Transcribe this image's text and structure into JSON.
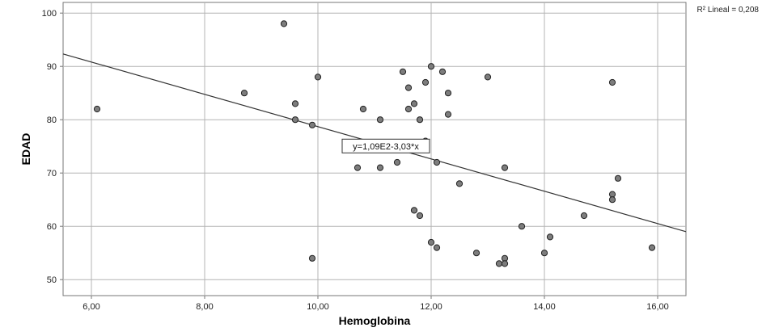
{
  "chart_data": {
    "type": "scatter",
    "title": "",
    "xlabel": "Hemoglobina",
    "ylabel": "EDAD",
    "xlim": [
      5.5,
      16.5
    ],
    "ylim": [
      47,
      102
    ],
    "x_ticks": [
      {
        "value": 6,
        "label": "6,00"
      },
      {
        "value": 8,
        "label": "8,00"
      },
      {
        "value": 10,
        "label": "10,00"
      },
      {
        "value": 12,
        "label": "12,00"
      },
      {
        "value": 14,
        "label": "14,00"
      },
      {
        "value": 16,
        "label": "16,00"
      }
    ],
    "y_ticks": [
      {
        "value": 50,
        "label": "50"
      },
      {
        "value": 60,
        "label": "60"
      },
      {
        "value": 70,
        "label": "70"
      },
      {
        "value": 80,
        "label": "80"
      },
      {
        "value": 90,
        "label": "90"
      },
      {
        "value": 100,
        "label": "100"
      }
    ],
    "grid": true,
    "points": [
      {
        "x": 6.1,
        "y": 82
      },
      {
        "x": 8.7,
        "y": 85
      },
      {
        "x": 9.4,
        "y": 98
      },
      {
        "x": 9.6,
        "y": 83
      },
      {
        "x": 9.6,
        "y": 80
      },
      {
        "x": 9.9,
        "y": 79
      },
      {
        "x": 9.9,
        "y": 54
      },
      {
        "x": 10.0,
        "y": 88
      },
      {
        "x": 10.7,
        "y": 71
      },
      {
        "x": 10.8,
        "y": 82
      },
      {
        "x": 11.1,
        "y": 80
      },
      {
        "x": 11.1,
        "y": 71
      },
      {
        "x": 11.4,
        "y": 72
      },
      {
        "x": 11.5,
        "y": 89
      },
      {
        "x": 11.6,
        "y": 86
      },
      {
        "x": 11.6,
        "y": 82
      },
      {
        "x": 11.7,
        "y": 83
      },
      {
        "x": 11.7,
        "y": 63
      },
      {
        "x": 11.8,
        "y": 80
      },
      {
        "x": 11.8,
        "y": 62
      },
      {
        "x": 11.9,
        "y": 87
      },
      {
        "x": 11.9,
        "y": 76
      },
      {
        "x": 12.0,
        "y": 90
      },
      {
        "x": 12.0,
        "y": 57
      },
      {
        "x": 12.1,
        "y": 72
      },
      {
        "x": 12.1,
        "y": 56
      },
      {
        "x": 12.2,
        "y": 89
      },
      {
        "x": 12.3,
        "y": 85
      },
      {
        "x": 12.3,
        "y": 81
      },
      {
        "x": 12.5,
        "y": 68
      },
      {
        "x": 12.8,
        "y": 55
      },
      {
        "x": 13.0,
        "y": 88
      },
      {
        "x": 13.2,
        "y": 53
      },
      {
        "x": 13.3,
        "y": 71
      },
      {
        "x": 13.3,
        "y": 54
      },
      {
        "x": 13.3,
        "y": 53
      },
      {
        "x": 13.6,
        "y": 60
      },
      {
        "x": 14.0,
        "y": 55
      },
      {
        "x": 14.1,
        "y": 58
      },
      {
        "x": 14.7,
        "y": 62
      },
      {
        "x": 15.2,
        "y": 87
      },
      {
        "x": 15.2,
        "y": 66
      },
      {
        "x": 15.2,
        "y": 65
      },
      {
        "x": 15.3,
        "y": 69
      },
      {
        "x": 15.9,
        "y": 56
      }
    ],
    "fit_line": {
      "intercept": 109,
      "slope": -3.03
    },
    "equation_label": "y=1,09E2-3,03*x",
    "r2_label": "R² Lineal = 0,208",
    "colors": {
      "point_fill": "#7d7d7d",
      "point_stroke": "#222222",
      "line": "#333333",
      "grid": "#b4b4b4",
      "frame": "#777777"
    }
  }
}
